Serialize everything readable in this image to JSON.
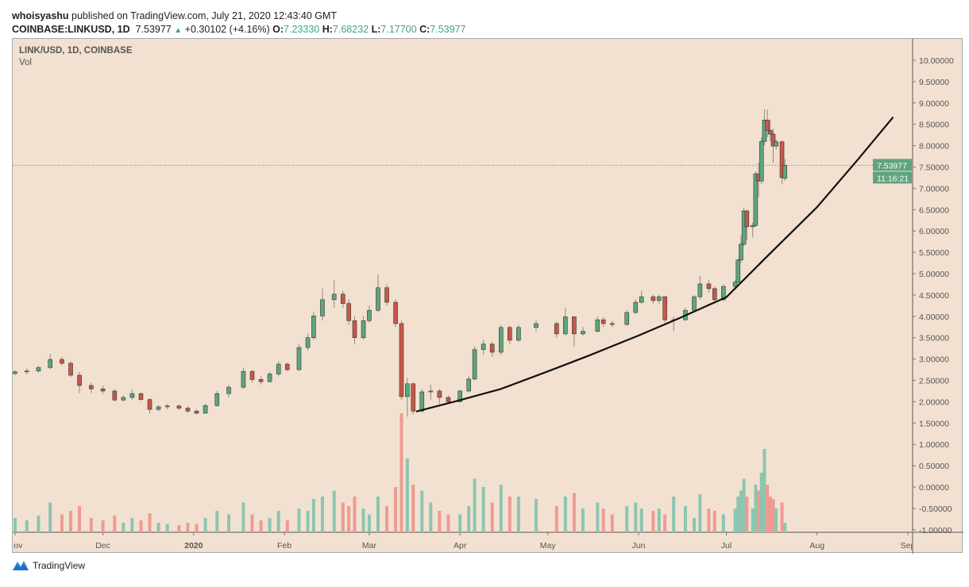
{
  "header": {
    "author": "whoisyashu",
    "published_text": "published on TradingView.com, July 21, 2020 12:43:40 GMT",
    "symbol": "COINBASE:LINKUSD, 1D",
    "last": "7.53977",
    "change": "+0.30102 (+4.16%)",
    "o_label": "O:",
    "o": "7.23330",
    "h_label": "H:",
    "h": "7.68232",
    "l_label": "L:",
    "l": "7.17700",
    "c_label": "C:",
    "c": "7.53977"
  },
  "legend": {
    "title": "LINK/USD, 1D, COINBASE",
    "vol": "Vol"
  },
  "price_tag": {
    "price": "7.53977",
    "countdown": "11:16:21"
  },
  "footer": {
    "brand": "TradingView"
  },
  "colors": {
    "background": "#f2e1d0",
    "up": "#5fa47f",
    "down": "#c9564a",
    "vol_up": "#8cc5b1",
    "vol_down": "#ee9b92",
    "trendline": "#111111",
    "last_price": "#5fa47f"
  },
  "chart_data": {
    "type": "candlestick",
    "interval": "1D",
    "ylim": [
      -1.0,
      10.25
    ],
    "y_ticks": [
      "10.00000",
      "9.50000",
      "9.00000",
      "8.50000",
      "8.00000",
      "7.50000",
      "7.00000",
      "6.50000",
      "6.00000",
      "5.50000",
      "5.00000",
      "4.50000",
      "4.00000",
      "3.50000",
      "3.00000",
      "2.50000",
      "2.00000",
      "1.50000",
      "1.00000",
      "0.50000",
      "0.00000",
      "-0.50000",
      "-1.00000"
    ],
    "x_ticks": [
      {
        "label": "Nov",
        "date": "2019-11-01"
      },
      {
        "label": "Dec",
        "date": "2019-12-01"
      },
      {
        "label": "2020",
        "date": "2020-01-01",
        "bold": true
      },
      {
        "label": "Feb",
        "date": "2020-02-01"
      },
      {
        "label": "Mar",
        "date": "2020-03-01"
      },
      {
        "label": "Apr",
        "date": "2020-04-01"
      },
      {
        "label": "May",
        "date": "2020-05-01"
      },
      {
        "label": "Jun",
        "date": "2020-06-01"
      },
      {
        "label": "Jul",
        "date": "2020-07-01"
      },
      {
        "label": "Aug",
        "date": "2020-08-01"
      },
      {
        "label": "Sep",
        "date": "2020-09-01"
      }
    ],
    "x_range": [
      "2019-11-01",
      "2020-09-01"
    ],
    "candle_fields": [
      "date",
      "open",
      "high",
      "low",
      "close",
      "relative_volume"
    ],
    "candles": [
      [
        "2019-11-01",
        2.66,
        2.74,
        2.62,
        2.7,
        0.12
      ],
      [
        "2019-11-05",
        2.7,
        2.78,
        2.64,
        2.72,
        0.1
      ],
      [
        "2019-11-09",
        2.72,
        2.85,
        2.68,
        2.8,
        0.14
      ],
      [
        "2019-11-13",
        2.8,
        3.12,
        2.76,
        2.99,
        0.25
      ],
      [
        "2019-11-17",
        2.99,
        3.05,
        2.85,
        2.9,
        0.15
      ],
      [
        "2019-11-20",
        2.9,
        2.95,
        2.58,
        2.62,
        0.18
      ],
      [
        "2019-11-23",
        2.62,
        2.7,
        2.2,
        2.38,
        0.22
      ],
      [
        "2019-11-27",
        2.38,
        2.45,
        2.2,
        2.3,
        0.12
      ],
      [
        "2019-12-01",
        2.3,
        2.38,
        2.18,
        2.25,
        0.1
      ],
      [
        "2019-12-05",
        2.25,
        2.3,
        2.0,
        2.04,
        0.14
      ],
      [
        "2019-12-08",
        2.04,
        2.15,
        2.0,
        2.1,
        0.08
      ],
      [
        "2019-12-11",
        2.1,
        2.28,
        2.05,
        2.19,
        0.12
      ],
      [
        "2019-12-14",
        2.19,
        2.22,
        2.02,
        2.05,
        0.1
      ],
      [
        "2019-12-17",
        2.05,
        2.08,
        1.72,
        1.82,
        0.16
      ],
      [
        "2019-12-20",
        1.82,
        1.92,
        1.78,
        1.88,
        0.08
      ],
      [
        "2019-12-23",
        1.88,
        1.95,
        1.82,
        1.9,
        0.07
      ],
      [
        "2019-12-27",
        1.9,
        1.94,
        1.8,
        1.85,
        0.06
      ],
      [
        "2019-12-30",
        1.85,
        1.9,
        1.74,
        1.78,
        0.08
      ],
      [
        "2020-01-02",
        1.78,
        1.82,
        1.7,
        1.73,
        0.07
      ],
      [
        "2020-01-05",
        1.73,
        1.95,
        1.72,
        1.91,
        0.12
      ],
      [
        "2020-01-09",
        1.91,
        2.25,
        1.88,
        2.19,
        0.18
      ],
      [
        "2020-01-13",
        2.19,
        2.4,
        2.1,
        2.34,
        0.15
      ],
      [
        "2020-01-18",
        2.34,
        2.8,
        2.3,
        2.71,
        0.25
      ],
      [
        "2020-01-21",
        2.71,
        2.75,
        2.45,
        2.52,
        0.15
      ],
      [
        "2020-01-24",
        2.52,
        2.6,
        2.4,
        2.47,
        0.1
      ],
      [
        "2020-01-27",
        2.47,
        2.7,
        2.45,
        2.65,
        0.12
      ],
      [
        "2020-01-30",
        2.65,
        2.95,
        2.6,
        2.88,
        0.18
      ],
      [
        "2020-02-02",
        2.88,
        2.92,
        2.72,
        2.75,
        0.1
      ],
      [
        "2020-02-06",
        2.75,
        3.35,
        2.72,
        3.27,
        0.2
      ],
      [
        "2020-02-09",
        3.27,
        3.6,
        3.2,
        3.5,
        0.18
      ],
      [
        "2020-02-11",
        3.5,
        4.1,
        3.45,
        4.01,
        0.28
      ],
      [
        "2020-02-14",
        4.01,
        4.65,
        3.9,
        4.39,
        0.3
      ],
      [
        "2020-02-18",
        4.39,
        4.85,
        4.2,
        4.52,
        0.35
      ],
      [
        "2020-02-21",
        4.52,
        4.6,
        4.2,
        4.3,
        0.25
      ],
      [
        "2020-02-23",
        4.3,
        4.4,
        3.8,
        3.9,
        0.22
      ],
      [
        "2020-02-25",
        3.9,
        4.0,
        3.35,
        3.5,
        0.3
      ],
      [
        "2020-02-28",
        3.5,
        4.0,
        3.45,
        3.9,
        0.2
      ],
      [
        "2020-03-01",
        3.9,
        4.25,
        3.85,
        4.14,
        0.15
      ],
      [
        "2020-03-04",
        4.14,
        4.98,
        4.1,
        4.67,
        0.3
      ],
      [
        "2020-03-07",
        4.67,
        4.75,
        4.25,
        4.33,
        0.22
      ],
      [
        "2020-03-10",
        4.33,
        4.4,
        3.75,
        3.83,
        0.38
      ],
      [
        "2020-03-12",
        3.83,
        3.9,
        2.05,
        2.12,
        1.0
      ],
      [
        "2020-03-14",
        2.12,
        2.55,
        1.65,
        2.42,
        0.62
      ],
      [
        "2020-03-16",
        2.42,
        2.45,
        1.7,
        1.78,
        0.4
      ],
      [
        "2020-03-19",
        1.78,
        2.3,
        1.75,
        2.23,
        0.35
      ],
      [
        "2020-03-22",
        2.23,
        2.4,
        2.05,
        2.25,
        0.25
      ],
      [
        "2020-03-25",
        2.25,
        2.3,
        1.95,
        2.1,
        0.18
      ],
      [
        "2020-03-28",
        2.1,
        2.15,
        1.95,
        2.0,
        0.15
      ],
      [
        "2020-04-01",
        2.0,
        2.28,
        1.98,
        2.25,
        0.15
      ],
      [
        "2020-04-04",
        2.25,
        2.6,
        2.22,
        2.53,
        0.22
      ],
      [
        "2020-04-06",
        2.53,
        3.3,
        2.5,
        3.22,
        0.45
      ],
      [
        "2020-04-09",
        3.22,
        3.45,
        3.1,
        3.35,
        0.38
      ],
      [
        "2020-04-12",
        3.35,
        3.4,
        3.05,
        3.16,
        0.25
      ],
      [
        "2020-04-15",
        3.16,
        3.8,
        3.1,
        3.74,
        0.4
      ],
      [
        "2020-04-18",
        3.74,
        3.78,
        3.35,
        3.44,
        0.3
      ],
      [
        "2020-04-21",
        3.44,
        3.8,
        3.4,
        3.74,
        0.3
      ],
      [
        "2020-04-27",
        3.74,
        3.9,
        3.65,
        3.83,
        0.28
      ],
      [
        "2020-05-04",
        3.83,
        3.88,
        3.5,
        3.59,
        0.22
      ],
      [
        "2020-05-07",
        3.59,
        4.2,
        3.55,
        3.99,
        0.3
      ],
      [
        "2020-05-10",
        3.99,
        4.0,
        3.3,
        3.59,
        0.33
      ],
      [
        "2020-05-13",
        3.59,
        3.75,
        3.55,
        3.65,
        0.2
      ],
      [
        "2020-05-18",
        3.65,
        4.0,
        3.62,
        3.92,
        0.25
      ],
      [
        "2020-05-20",
        3.92,
        3.98,
        3.75,
        3.83,
        0.2
      ],
      [
        "2020-05-23",
        3.83,
        3.9,
        3.75,
        3.81,
        0.15
      ],
      [
        "2020-05-28",
        3.81,
        4.15,
        3.78,
        4.09,
        0.22
      ],
      [
        "2020-05-31",
        4.09,
        4.4,
        4.05,
        4.33,
        0.25
      ],
      [
        "2020-06-02",
        4.33,
        4.6,
        4.3,
        4.46,
        0.2
      ],
      [
        "2020-06-06",
        4.46,
        4.5,
        4.3,
        4.37,
        0.18
      ],
      [
        "2020-06-08",
        4.37,
        4.5,
        4.3,
        4.46,
        0.2
      ],
      [
        "2020-06-10",
        4.46,
        4.48,
        3.85,
        3.92,
        0.15
      ],
      [
        "2020-06-13",
        3.92,
        4.0,
        3.65,
        3.92,
        0.3
      ],
      [
        "2020-06-17",
        3.92,
        4.2,
        3.9,
        4.14,
        0.22
      ],
      [
        "2020-06-20",
        4.14,
        4.5,
        4.1,
        4.46,
        0.12
      ],
      [
        "2020-06-22",
        4.46,
        4.95,
        4.4,
        4.76,
        0.32
      ],
      [
        "2020-06-25",
        4.76,
        4.85,
        4.55,
        4.65,
        0.2
      ],
      [
        "2020-06-27",
        4.65,
        4.7,
        4.3,
        4.39,
        0.18
      ],
      [
        "2020-06-30",
        4.39,
        4.75,
        4.35,
        4.7,
        0.15
      ],
      [
        "2020-07-04",
        4.7,
        4.85,
        4.65,
        4.8,
        0.2
      ],
      [
        "2020-07-05",
        4.8,
        5.35,
        4.78,
        5.32,
        0.3
      ],
      [
        "2020-07-06",
        5.32,
        5.9,
        5.25,
        5.69,
        0.35
      ],
      [
        "2020-07-07",
        5.69,
        6.55,
        5.65,
        6.47,
        0.45
      ],
      [
        "2020-07-08",
        6.47,
        6.5,
        5.8,
        6.1,
        0.3
      ],
      [
        "2020-07-10",
        6.1,
        6.2,
        5.85,
        6.13,
        0.2
      ],
      [
        "2020-07-11",
        6.13,
        7.4,
        6.1,
        7.34,
        0.4
      ],
      [
        "2020-07-12",
        7.34,
        7.6,
        6.8,
        7.17,
        0.35
      ],
      [
        "2020-07-13",
        7.17,
        8.2,
        7.1,
        8.1,
        0.5
      ],
      [
        "2020-07-14",
        8.1,
        8.85,
        8.0,
        8.6,
        0.7
      ],
      [
        "2020-07-15",
        8.6,
        8.85,
        8.2,
        8.36,
        0.4
      ],
      [
        "2020-07-16",
        8.36,
        8.6,
        8.1,
        8.27,
        0.3
      ],
      [
        "2020-07-17",
        8.27,
        8.4,
        7.6,
        7.99,
        0.28
      ],
      [
        "2020-07-18",
        7.99,
        8.15,
        7.9,
        8.09,
        0.2
      ],
      [
        "2020-07-20",
        8.09,
        8.12,
        7.1,
        7.25,
        0.25
      ],
      [
        "2020-07-21",
        7.2333,
        7.68232,
        7.177,
        7.53977,
        0.08
      ]
    ],
    "last_price": 7.53977,
    "trendline": [
      [
        "2020-03-17",
        1.77
      ],
      [
        "2020-03-30",
        2.0
      ],
      [
        "2020-04-15",
        2.3
      ],
      [
        "2020-05-01",
        2.71
      ],
      [
        "2020-05-15",
        3.08
      ],
      [
        "2020-06-01",
        3.55
      ],
      [
        "2020-06-15",
        3.96
      ],
      [
        "2020-07-01",
        4.45
      ],
      [
        "2020-07-15",
        5.41
      ],
      [
        "2020-08-01",
        6.56
      ],
      [
        "2020-08-15",
        7.68
      ],
      [
        "2020-08-27",
        8.67
      ]
    ]
  }
}
